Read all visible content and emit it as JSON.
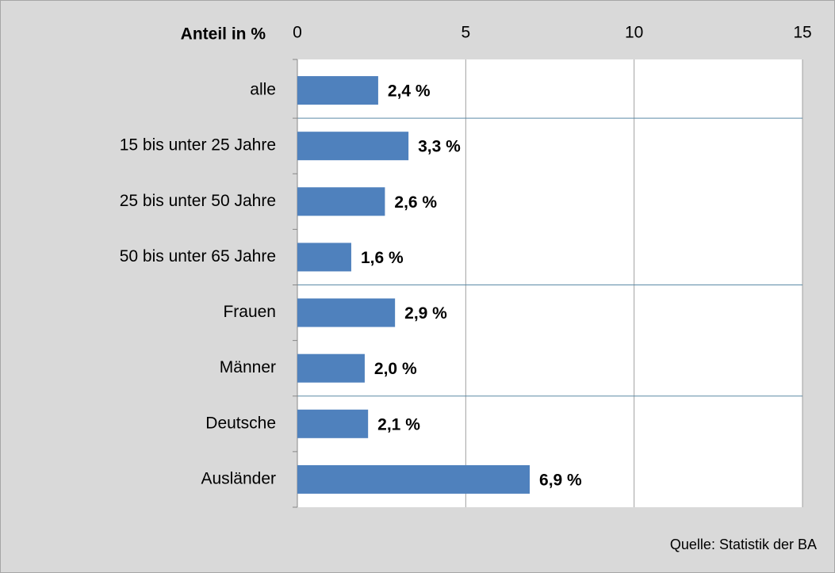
{
  "chart_data": {
    "type": "bar",
    "orientation": "horizontal",
    "title": "Anteil in %",
    "categories": [
      "alle",
      "15 bis unter 25 Jahre",
      "25 bis unter 50 Jahre",
      "50 bis unter 65 Jahre",
      "Frauen",
      "Männer",
      "Deutsche",
      "Ausländer"
    ],
    "values": [
      2.4,
      3.3,
      2.6,
      1.6,
      2.9,
      2.0,
      2.1,
      6.9
    ],
    "value_labels": [
      "2,4 %",
      "3,3 %",
      "2,6 %",
      "1,6 %",
      "2,9 %",
      "2,0 %",
      "2,1 %",
      "6,9 %"
    ],
    "color": "#4f81bd",
    "xlim": [
      0,
      15
    ],
    "xticks": [
      0,
      5,
      10,
      15
    ],
    "grid": true,
    "source": "Quelle: Statistik der BA"
  }
}
